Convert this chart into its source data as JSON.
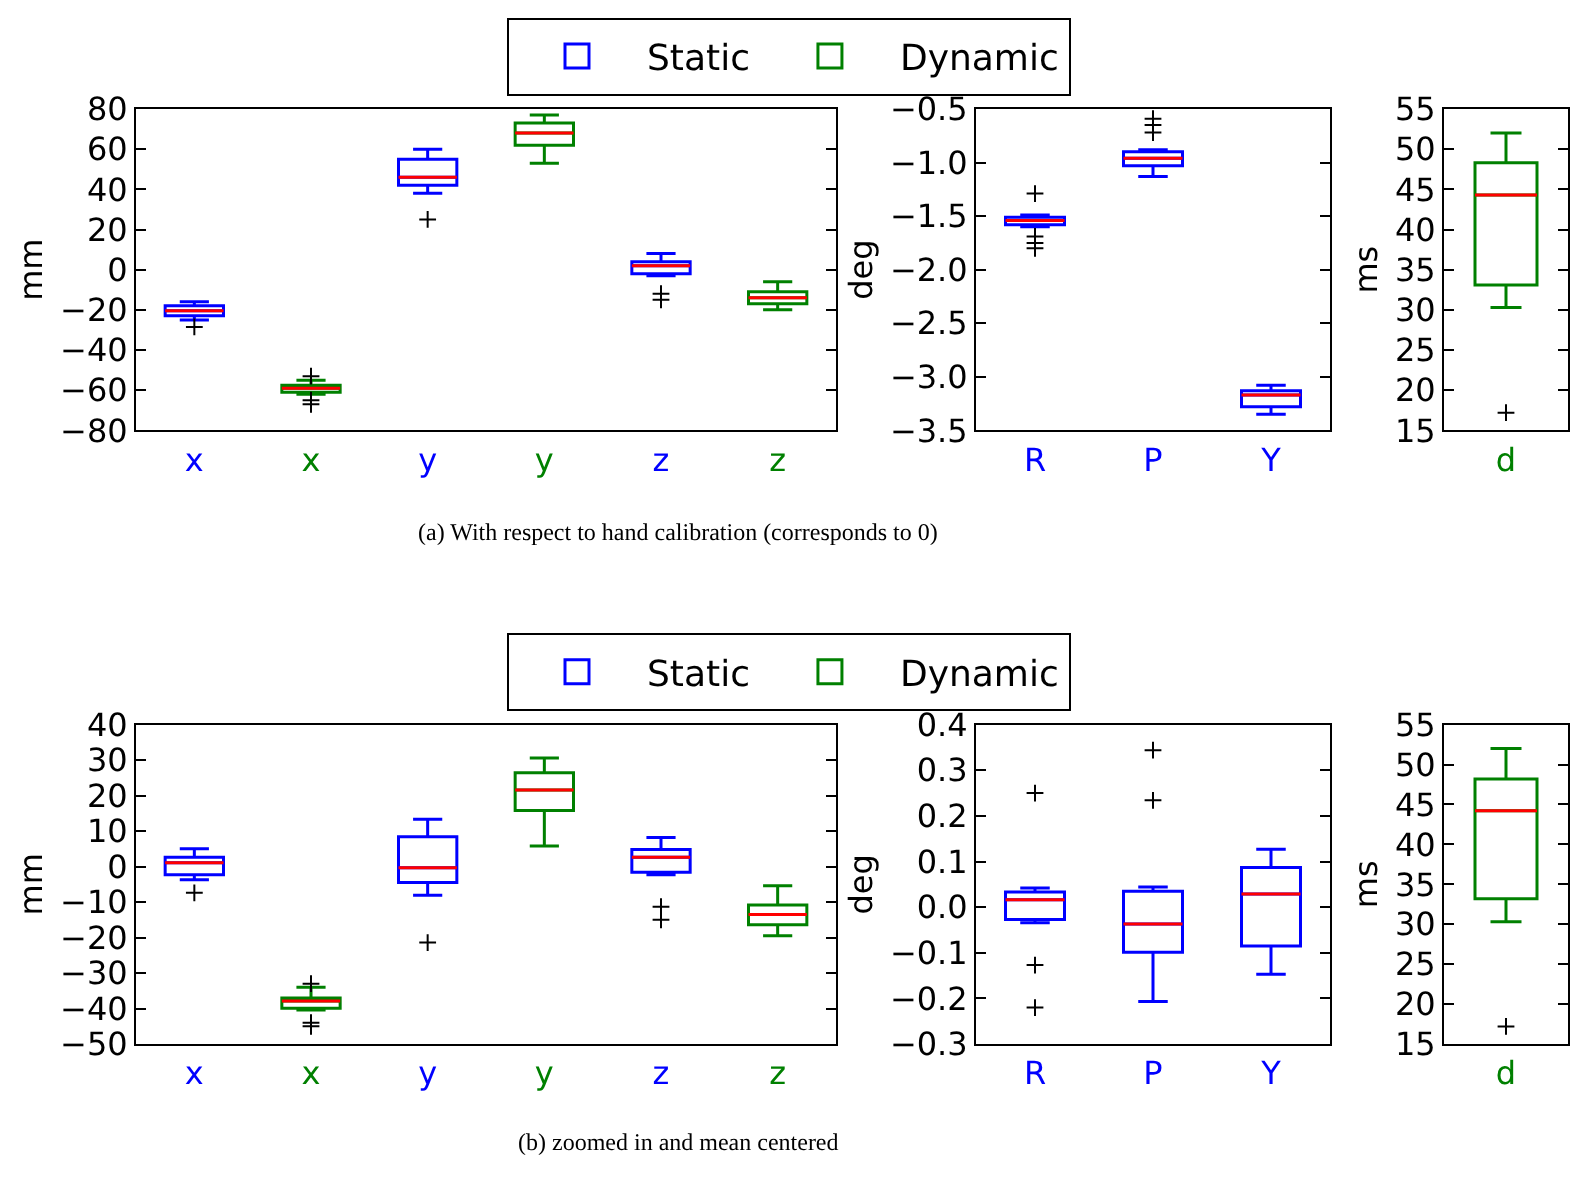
{
  "chart_data": [
    {
      "type": "box",
      "categories": [
        "x",
        "x",
        "y",
        "y",
        "z",
        "z"
      ],
      "ylabel": "mm",
      "ylim": [
        -80,
        80
      ],
      "yticks": [
        -80,
        -60,
        -40,
        -20,
        0,
        20,
        40,
        60,
        80
      ],
      "legend": "top",
      "annotations": [
        "(a) With respect to hand calibration (corresponds to 0)"
      ],
      "series": [
        {
          "name": "Static",
          "color": "#0000ff",
          "boxes": [
            {
              "low": -25,
              "q1": -23,
              "median": -20.5,
              "q3": -18,
              "high": -16,
              "outliers": [
                -28.5
              ]
            },
            null,
            {
              "low": 38,
              "q1": 42,
              "median": 46,
              "q3": 55,
              "high": 60,
              "outliers": [
                25
              ]
            },
            null,
            {
              "low": -3,
              "q1": -2,
              "median": 2,
              "q3": 4,
              "high": 8,
              "outliers": [
                -12,
                -15
              ]
            },
            null
          ]
        },
        {
          "name": "Dynamic",
          "color": "#008000",
          "boxes": [
            null,
            {
              "low": -62,
              "q1": -61,
              "median": -59,
              "q3": -57.5,
              "high": -55,
              "outliers": [
                -53,
                -65,
                -67
              ]
            },
            null,
            {
              "low": 53,
              "q1": 62,
              "median": 68,
              "q3": 73,
              "high": 77
            },
            null,
            {
              "low": -20,
              "q1": -17,
              "median": -14,
              "q3": -11,
              "high": -6
            }
          ]
        }
      ]
    },
    {
      "type": "box",
      "categories": [
        "R",
        "P",
        "Y"
      ],
      "ylabel": "deg",
      "ylim": [
        -3.5,
        -0.5
      ],
      "yticks": [
        -3.5,
        {
          "value": -3,
          "label": "−3.0"
        },
        -2.5,
        {
          "value": -2,
          "label": "−2.0"
        },
        -1.5,
        {
          "value": -1,
          "label": "−1.0"
        },
        -0.5
      ],
      "series": [
        {
          "color": "#0000ff",
          "boxes": [
            {
              "low": -1.6,
              "q1": -1.58,
              "median": -1.54,
              "q3": -1.51,
              "high": -1.49,
              "outliers": [
                -1.29,
                -1.69,
                -1.75,
                -1.8
              ]
            },
            {
              "low": -1.13,
              "q1": -1.03,
              "median": -0.96,
              "q3": -0.9,
              "high": -0.88,
              "outliers": [
                -0.59,
                -0.65,
                -0.72
              ]
            },
            {
              "low": -3.35,
              "q1": -3.28,
              "median": -3.17,
              "q3": -3.13,
              "high": -3.08
            }
          ]
        }
      ]
    },
    {
      "type": "box",
      "categories": [
        "d"
      ],
      "ylabel": "ms",
      "ylim": [
        15,
        55
      ],
      "yticks": [
        15,
        20,
        25,
        30,
        35,
        40,
        45,
        50,
        55
      ],
      "series": [
        {
          "color": "#008000",
          "boxes": [
            {
              "low": 30.3,
              "q1": 33.1,
              "median": 44.3,
              "q3": 48.3,
              "high": 52,
              "outliers": [
                17.2
              ]
            }
          ]
        }
      ]
    },
    {
      "type": "box",
      "categories": [
        "x",
        "x",
        "y",
        "y",
        "z",
        "z"
      ],
      "ylabel": "mm",
      "ylim": [
        -50,
        40
      ],
      "yticks": [
        -50,
        -40,
        -30,
        -20,
        -10,
        0,
        10,
        20,
        30,
        40
      ],
      "legend": "top",
      "annotations": [
        "(b) zoomed in and mean centered"
      ],
      "series": [
        {
          "name": "Static",
          "color": "#0000ff",
          "boxes": [
            {
              "low": -3.7,
              "q1": -2.3,
              "median": 1.1,
              "q3": 2.6,
              "high": 5,
              "outliers": [
                -7.4
              ]
            },
            null,
            {
              "low": -8.1,
              "q1": -4.5,
              "median": -0.3,
              "q3": 8.4,
              "high": 13.3,
              "outliers": [
                -21.4
              ]
            },
            null,
            {
              "low": -2.3,
              "q1": -1.6,
              "median": 2.6,
              "q3": 4.8,
              "high": 8.2,
              "outliers": [
                -11.3,
                -15
              ]
            },
            null
          ]
        },
        {
          "name": "Dynamic",
          "color": "#008000",
          "boxes": [
            null,
            {
              "low": -40.4,
              "q1": -39.9,
              "median": -37.9,
              "q3": -37,
              "high": -34,
              "outliers": [
                -33,
                -44,
                -45
              ]
            },
            null,
            {
              "low": 5.8,
              "q1": 15.8,
              "median": 21.6,
              "q3": 26.4,
              "high": 30.6
            },
            null,
            {
              "low": -19.5,
              "q1": -16.4,
              "median": -13.5,
              "q3": -10.8,
              "high": -5.4
            }
          ]
        }
      ]
    },
    {
      "type": "box",
      "categories": [
        "R",
        "P",
        "Y"
      ],
      "ylabel": "deg",
      "ylim": [
        -0.3,
        0.4
      ],
      "yticks": [
        -0.3,
        -0.2,
        -0.1,
        {
          "value": 0,
          "label": "0.0"
        },
        0.1,
        0.2,
        0.3,
        0.4
      ],
      "series": [
        {
          "color": "#0000ff",
          "boxes": [
            {
              "low": -0.034,
              "q1": -0.027,
              "median": 0.016,
              "q3": 0.033,
              "high": 0.042,
              "outliers": [
                0.25,
                -0.127,
                -0.22
              ]
            },
            {
              "low": -0.207,
              "q1": -0.099,
              "median": -0.037,
              "q3": 0.035,
              "high": 0.044,
              "outliers": [
                0.344,
                0.234
              ]
            },
            {
              "low": -0.147,
              "q1": -0.085,
              "median": 0.029,
              "q3": 0.087,
              "high": 0.127
            }
          ]
        }
      ]
    },
    {
      "type": "box",
      "categories": [
        "d"
      ],
      "ylabel": "ms",
      "ylim": [
        15,
        55
      ],
      "yticks": [
        15,
        20,
        25,
        30,
        35,
        40,
        45,
        50,
        55
      ],
      "series": [
        {
          "color": "#008000",
          "boxes": [
            {
              "low": 30.3,
              "q1": 33.2,
              "median": 44.2,
              "q3": 48.2,
              "high": 52,
              "outliers": [
                17.2
              ]
            }
          ]
        }
      ]
    }
  ]
}
